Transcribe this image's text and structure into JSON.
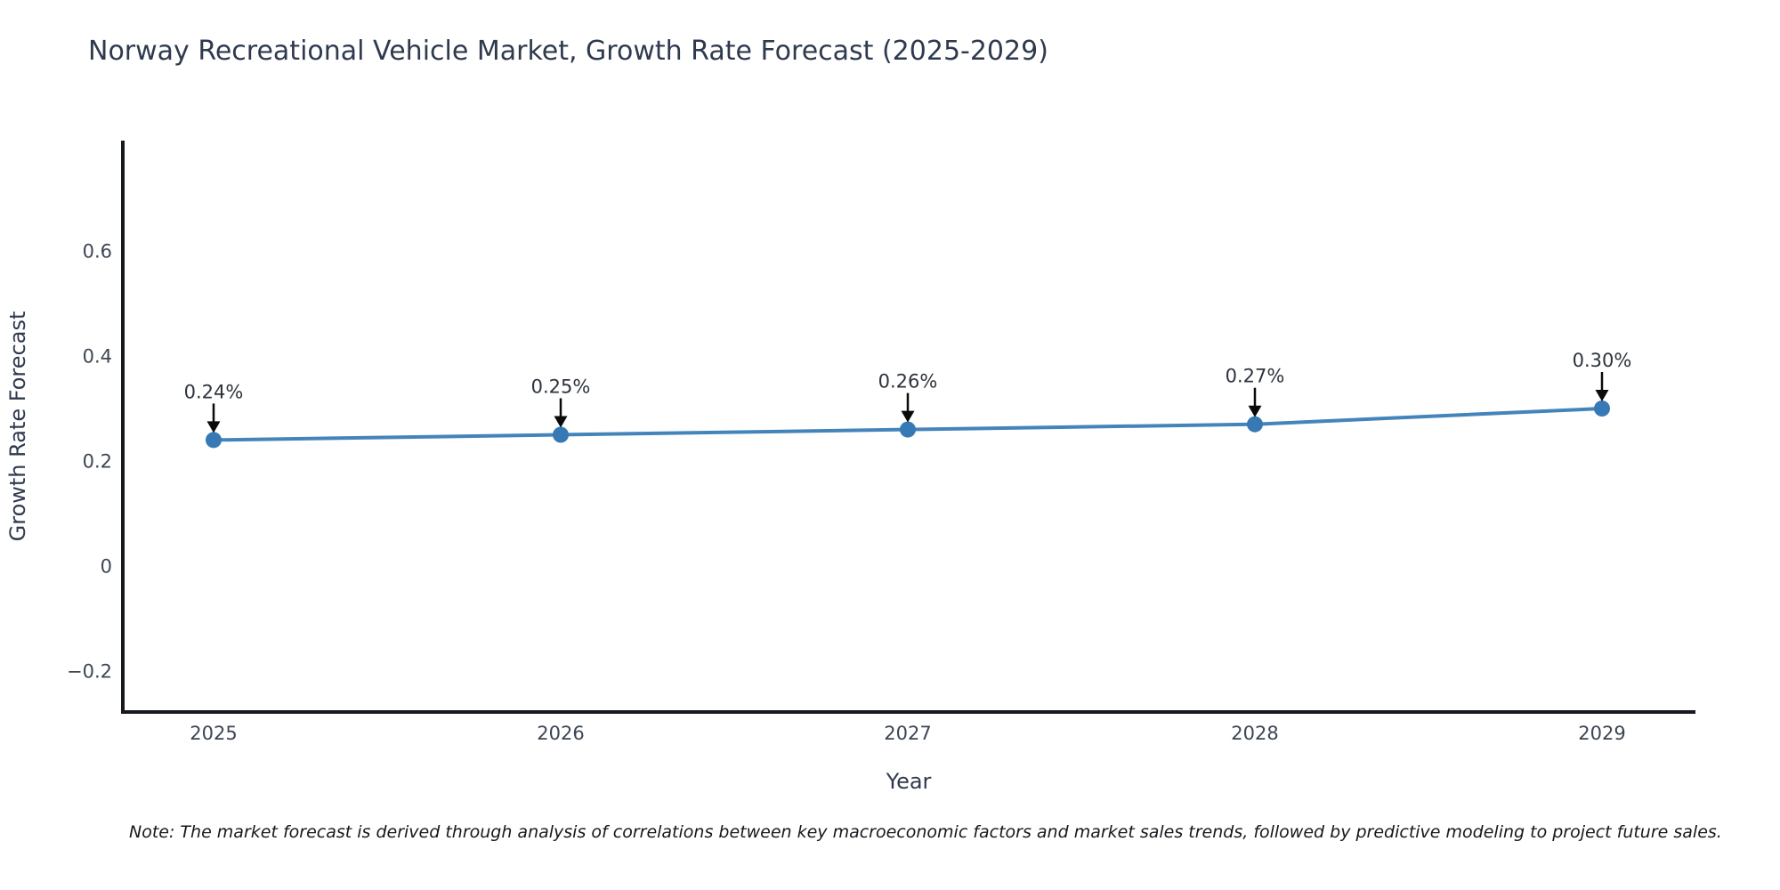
{
  "note": "Note: The market forecast is derived through analysis of correlations between key macroeconomic factors and market sales trends, followed by predictive modeling to project future sales.",
  "chart_data": {
    "type": "line",
    "title": "Norway Recreational Vehicle Market, Growth Rate Forecast (2025-2029)",
    "xlabel": "Year",
    "ylabel": "Growth Rate Forecast",
    "x": [
      2025,
      2026,
      2027,
      2028,
      2029
    ],
    "xtick_labels": [
      "2025",
      "2026",
      "2027",
      "2028",
      "2029"
    ],
    "series": [
      {
        "name": "Growth Rate Forecast",
        "values": [
          0.24,
          0.25,
          0.26,
          0.27,
          0.3
        ]
      }
    ],
    "point_labels": [
      "0.24%",
      "0.25%",
      "0.26%",
      "0.27%",
      "0.30%"
    ],
    "yticks": [
      0.6,
      0.4,
      0.2,
      0,
      -0.2
    ],
    "ytick_labels": [
      "0.6",
      "0.4",
      "0.2",
      "0",
      "−0.2"
    ],
    "ylim": [
      -0.28,
      0.81
    ],
    "xlim": [
      2024.74,
      2029.27
    ],
    "grid": false,
    "legend_position": "none",
    "annotation_style": "value label with downward black arrow to each marker",
    "colors": {
      "line": "#4384bb",
      "marker": "#3679b5",
      "arrow": "#0a0a0a",
      "spine": "#16191d",
      "title_text": "#2f3a4f",
      "axis_label_text": "#2f3a4f",
      "tick_text": "#3c4653",
      "annotation_text": "#2e343c",
      "note_text": "#15181d",
      "background": "#ffffff"
    }
  }
}
